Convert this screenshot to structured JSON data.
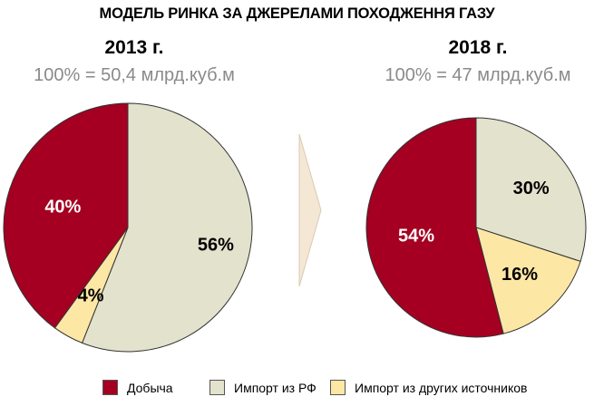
{
  "title": "МОДЕЛЬ РИНКА ЗА ДЖЕРЕЛАМИ ПОХОДЖЕННЯ ГАЗУ",
  "colors": {
    "Добыча": "#a50021",
    "Импорт из РФ": "#e3e2cd",
    "Импорт из других источников": "#fde7a5",
    "arrow_fill": "#f4e7d4",
    "arrow_stroke": "#d9cbb5"
  },
  "chart_data": [
    {
      "type": "pie",
      "title": "2013 г.",
      "subtitle": "100% = 50,4 млрд.куб.м",
      "categories": [
        "Добыча",
        "Импорт из РФ",
        "Импорт из других источников"
      ],
      "values": [
        40,
        56,
        4
      ],
      "labels": [
        "40%",
        "56%",
        "4%"
      ]
    },
    {
      "type": "pie",
      "title": "2018 г.",
      "subtitle": "100% = 47 млрд.куб.м",
      "categories": [
        "Добыча",
        "Импорт из РФ",
        "Импорт из других источников"
      ],
      "values": [
        54,
        30,
        16
      ],
      "labels": [
        "54%",
        "30%",
        "16%"
      ]
    }
  ],
  "legend": {
    "items": [
      "Добыча",
      "Импорт из РФ",
      "Импорт из других источников"
    ],
    "placement": "bottom"
  }
}
